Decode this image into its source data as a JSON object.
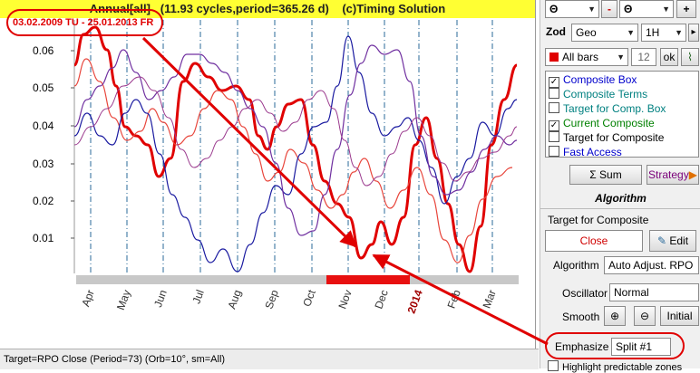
{
  "chart": {
    "title": "Annual[all]   (11.93 cycles,period=365.26 d)    (c)Timing Solution",
    "date_range": "03.02.2009 TU - 25.01.2013 FR",
    "y_ticks": [
      "0.06",
      "0.05",
      "0.04",
      "0.03",
      "0.02",
      "0.01"
    ],
    "x_ticks": [
      "Apr",
      "May",
      "Jun",
      "Jul",
      "Aug",
      "Sep",
      "Oct",
      "Nov",
      "Dec",
      "2014",
      "Feb",
      "Mar"
    ],
    "colors": {
      "thick_red": "#e00000",
      "red": "#e8463c",
      "blue": "#1a1aa0",
      "purple": "#7030a0",
      "grid": "#2a6a9a",
      "arrow": "#e00000"
    }
  },
  "status": {
    "text": "Target=RPO Close (Period=73) (Orb=10°, sm=All)"
  },
  "panel": {
    "row1": {
      "select1": "Θ",
      "select2": "Θ",
      "minus": "-",
      "plus": "+"
    },
    "zod": {
      "label": "Zod",
      "system": "Geo",
      "timeframe": "1H"
    },
    "bars": {
      "label": "All bars",
      "value": "12",
      "ok": "ok"
    },
    "checks": [
      {
        "label": "Composite Box",
        "checked": true,
        "color": "#0000cc"
      },
      {
        "label": "Composite Terms",
        "checked": false,
        "color": "#008080"
      },
      {
        "label": "Target for Comp. Box",
        "checked": false,
        "color": "#008080"
      },
      {
        "label": "Current Composite",
        "checked": true,
        "color": "#008000"
      },
      {
        "label": "Target for Composite",
        "checked": false,
        "color": "#000000"
      },
      {
        "label": "Fast Access",
        "checked": false,
        "color": "#0000cc"
      }
    ],
    "sum_button": "Σ Sum",
    "strategy_button": "Strategy",
    "algorithm_header": "Algorithm",
    "target_label": "Target for Composite",
    "target_value": "Close",
    "edit_button": "Edit",
    "algorithm_label": "Algorithm",
    "algorithm_value": "Auto Adjust. RPO",
    "oscillator_label": "Oscillator",
    "oscillator_value": "Normal",
    "smooth_label": "Smooth",
    "initial_button": "Initial",
    "emphasize_label": "Emphasize",
    "emphasize_value": "Split #1",
    "highlight_label": "Highlight predictable zones"
  }
}
